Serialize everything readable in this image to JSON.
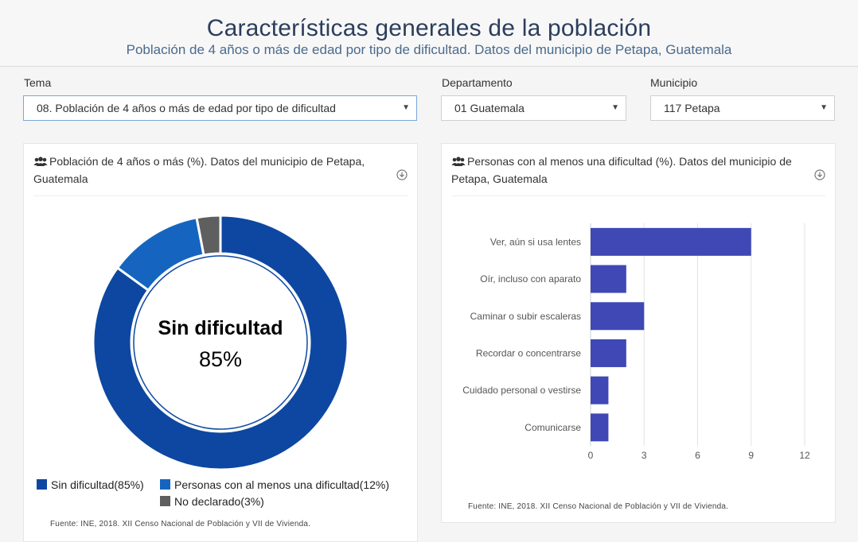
{
  "header": {
    "title": "Características generales de la población",
    "subtitle": "Población de 4 años o más de edad por tipo de dificultad. Datos del municipio de Petapa, Guatemala"
  },
  "filters": {
    "tema_label": "Tema",
    "tema_value": "08. Población de 4 años o más de edad por tipo de dificultad",
    "departamento_label": "Departamento",
    "departamento_value": "01 Guatemala",
    "municipio_label": "Municipio",
    "municipio_value": "117 Petapa"
  },
  "donut_card": {
    "title_line1": "Población de 4 años o más (%). Datos del municipio de Petapa,",
    "title_line2": "Guatemala",
    "center_label": "Sin dificultad",
    "center_value": "85%",
    "legend": [
      {
        "label": "Sin dificultad(85%)",
        "color": "#0d47a1"
      },
      {
        "label": "Personas con al menos una dificultad(12%)",
        "color": "#1565c0"
      },
      {
        "label": "No declarado(3%)",
        "color": "#5f5f5f"
      }
    ],
    "source": "Fuente: INE, 2018. XII Censo Nacional de Población y VII de Vivienda."
  },
  "bar_card": {
    "title_line1": "Personas con al menos una dificultad (%). Datos del municipio de",
    "title_line2": "Petapa, Guatemala",
    "source": "Fuente: INE, 2018. XII Censo Nacional de Población y VII de Vivienda."
  },
  "chart_data": [
    {
      "type": "pie",
      "categories": [
        "Sin dificultad",
        "Personas con al menos una dificultad",
        "No declarado"
      ],
      "values": [
        85,
        12,
        3
      ],
      "colors": [
        "#0d47a1",
        "#1565c0",
        "#5f5f5f"
      ],
      "legend_position": "bottom"
    },
    {
      "type": "bar",
      "orientation": "horizontal",
      "categories": [
        "Ver, aún si usa lentes",
        "Oír, incluso con aparato",
        "Caminar o subir escaleras",
        "Recordar o concentrarse",
        "Cuidado personal o vestirse",
        "Comunicarse"
      ],
      "values": [
        9,
        2,
        3,
        2,
        1,
        1
      ],
      "xlim": [
        0,
        12
      ],
      "xticks": [
        0,
        3,
        6,
        9,
        12
      ],
      "color": "#3f48b5",
      "grid": true
    }
  ]
}
